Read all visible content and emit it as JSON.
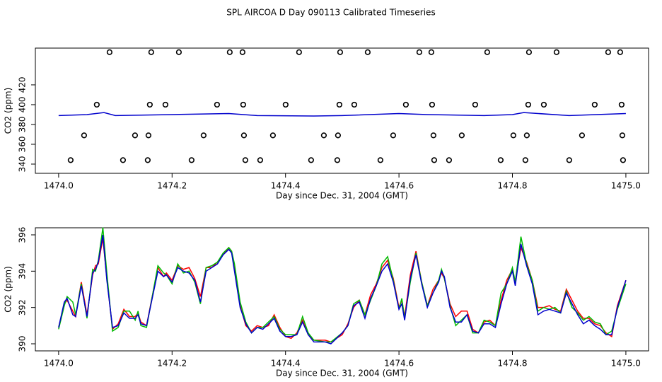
{
  "chart_data": [
    {
      "type": "scatter",
      "title": "SPL AIRCOA D  Day 090113  Calibrated Timeseries",
      "x_label": "Day since Dec. 31, 2004 (GMT)",
      "y_label": "CO2 (ppm)",
      "xlim": [
        1473.959,
        1475.04
      ],
      "ylim": [
        330.7,
        457.1
      ],
      "xticks": [
        {
          "value": 1474,
          "label": "1474.0"
        },
        1474.2,
        1474.4,
        1474.6,
        1474.8,
        {
          "value": 1475,
          "label": "1475.0"
        }
      ],
      "yticks": [
        340,
        360,
        380,
        400,
        420
      ],
      "series": [
        {
          "type": "scatter",
          "color": "#000000",
          "x": [
            1474.0898,
            1474.1633,
            1474.212,
            1474.3017,
            1474.3242,
            1474.4239,
            1474.4963,
            1474.5449,
            1474.6359,
            1474.6571,
            1474.7556,
            1474.8292,
            1474.8778,
            1474.9688,
            1474.99
          ],
          "values": [
            453,
            453,
            453,
            453,
            453,
            453,
            453,
            453,
            453,
            453,
            453,
            453,
            453,
            453,
            453
          ]
        },
        {
          "type": "scatter",
          "color": "#000000",
          "x": [
            1474.0673,
            1474.1608,
            1474.1883,
            1474.2793,
            1474.3254,
            1474.4002,
            1474.495,
            1474.5212,
            1474.6122,
            1474.6584,
            1474.7344,
            1474.8279,
            1474.8554,
            1474.9451,
            1474.9925
          ],
          "values": [
            400,
            400,
            400,
            400,
            400,
            400,
            400,
            400,
            400,
            400,
            400,
            400,
            400,
            400,
            400
          ]
        },
        {
          "type": "scatter",
          "color": "#000000",
          "x": [
            1474.0449,
            1474.1347,
            1474.1584,
            1474.2556,
            1474.3267,
            1474.3778,
            1474.4676,
            1474.4925,
            1474.5898,
            1474.6608,
            1474.7107,
            1474.8017,
            1474.8254,
            1474.9227,
            1474.9938
          ],
          "values": [
            369,
            369,
            369,
            369,
            369,
            369,
            369,
            369,
            369,
            369,
            369,
            369,
            369,
            369,
            369
          ]
        },
        {
          "type": "scatter",
          "color": "#000000",
          "x": [
            1474.0212,
            1474.1135,
            1474.1571,
            1474.2344,
            1474.3292,
            1474.3554,
            1474.4451,
            1474.4913,
            1474.5673,
            1474.6621,
            1474.6883,
            1474.7793,
            1474.8229,
            1474.9002,
            1474.995
          ],
          "values": [
            344,
            344,
            344,
            344,
            344,
            344,
            344,
            344,
            344,
            344,
            344,
            344,
            344,
            344,
            344
          ]
        },
        {
          "type": "line",
          "color": "#0000cc",
          "x": [
            1474.0,
            1474.05,
            1474.08,
            1474.1,
            1474.2,
            1474.3,
            1474.35,
            1474.45,
            1474.5,
            1474.6,
            1474.65,
            1474.75,
            1474.8,
            1474.82,
            1474.9,
            1475.0
          ],
          "values": [
            389,
            390,
            392,
            389,
            390,
            391,
            389,
            388.5,
            389,
            391,
            390,
            389,
            390,
            392,
            389,
            391
          ]
        }
      ]
    },
    {
      "type": "line",
      "x_label": "Day since Dec. 31, 2004 (GMT)",
      "y_label": "CO2 (ppm)",
      "xlim": [
        1473.959,
        1475.04
      ],
      "ylim": [
        389.61,
        396.39
      ],
      "xticks": [
        {
          "value": 1474,
          "label": "1474.0"
        },
        1474.2,
        1474.4,
        1474.6,
        1474.8,
        {
          "value": 1475,
          "label": "1475.0"
        }
      ],
      "yticks": [
        390,
        392,
        394,
        396
      ],
      "x": [
        1474.0,
        1474.01,
        1474.015,
        1474.025,
        1474.03,
        1474.04,
        1474.05,
        1474.06,
        1474.065,
        1474.07,
        1474.078,
        1474.085,
        1474.095,
        1474.105,
        1474.115,
        1474.125,
        1474.135,
        1474.14,
        1474.145,
        1474.155,
        1474.175,
        1474.185,
        1474.19,
        1474.2,
        1474.21,
        1474.22,
        1474.23,
        1474.24,
        1474.25,
        1474.26,
        1474.27,
        1474.28,
        1474.29,
        1474.3,
        1474.305,
        1474.31,
        1474.32,
        1474.33,
        1474.34,
        1474.35,
        1474.36,
        1474.37,
        1474.38,
        1474.39,
        1474.4,
        1474.41,
        1474.42,
        1474.43,
        1474.44,
        1474.45,
        1474.47,
        1474.48,
        1474.5,
        1474.51,
        1474.52,
        1474.53,
        1474.54,
        1474.55,
        1474.56,
        1474.57,
        1474.58,
        1474.59,
        1474.6,
        1474.605,
        1474.61,
        1474.62,
        1474.63,
        1474.64,
        1474.65,
        1474.66,
        1474.67,
        1474.675,
        1474.68,
        1474.69,
        1474.7,
        1474.71,
        1474.72,
        1474.73,
        1474.74,
        1474.75,
        1474.76,
        1474.77,
        1474.78,
        1474.79,
        1474.8,
        1474.805,
        1474.815,
        1474.825,
        1474.835,
        1474.845,
        1474.855,
        1474.865,
        1474.875,
        1474.885,
        1474.895,
        1474.905,
        1474.915,
        1474.925,
        1474.935,
        1474.945,
        1474.955,
        1474.965,
        1474.975,
        1474.985,
        1475.0
      ],
      "series": [
        {
          "type": "line",
          "color": "#ff0000",
          "values": [
            390.9,
            392.2,
            392.4,
            391.8,
            391.5,
            393.4,
            391.6,
            393.8,
            394.3,
            394.4,
            395.8,
            393.6,
            390.8,
            391.1,
            391.9,
            391.5,
            391.5,
            391.7,
            391.2,
            391.0,
            394.2,
            393.7,
            393.9,
            393.5,
            394.3,
            394.1,
            394.2,
            393.6,
            392.6,
            394.2,
            394.2,
            394.5,
            394.9,
            395.3,
            395.1,
            394.2,
            392.1,
            391.0,
            390.7,
            391.0,
            390.9,
            391.0,
            391.6,
            390.9,
            390.4,
            390.3,
            390.6,
            391.3,
            390.5,
            390.2,
            390.2,
            390.1,
            390.5,
            391.1,
            392.0,
            392.4,
            391.6,
            392.7,
            393.3,
            394.2,
            394.6,
            393.6,
            392.0,
            392.4,
            391.5,
            393.8,
            395.1,
            393.4,
            392.1,
            393.0,
            393.5,
            393.9,
            393.6,
            392.2,
            391.5,
            391.8,
            391.8,
            390.8,
            390.6,
            391.2,
            391.3,
            391.0,
            392.4,
            393.5,
            394.1,
            393.4,
            395.3,
            394.5,
            393.5,
            392.0,
            392.0,
            392.1,
            391.9,
            391.8,
            393.0,
            392.4,
            391.8,
            391.4,
            391.4,
            391.1,
            391.0,
            390.6,
            390.4,
            392.1,
            393.5
          ]
        },
        {
          "type": "line",
          "color": "#00bb00",
          "values": [
            390.8,
            392.1,
            392.6,
            392.3,
            391.6,
            393.3,
            391.4,
            394.1,
            394.0,
            394.6,
            396.4,
            393.9,
            390.7,
            390.9,
            391.8,
            391.8,
            391.3,
            391.8,
            391.0,
            390.9,
            394.3,
            393.9,
            393.8,
            393.3,
            394.4,
            393.9,
            394.0,
            393.4,
            392.2,
            394.2,
            394.3,
            394.5,
            395.0,
            395.3,
            395.1,
            394.4,
            392.3,
            391.2,
            390.6,
            390.9,
            390.9,
            391.2,
            391.5,
            390.8,
            390.5,
            390.5,
            390.5,
            391.5,
            390.6,
            390.2,
            390.1,
            390.1,
            390.6,
            391.0,
            392.2,
            392.4,
            391.6,
            392.4,
            393.2,
            394.4,
            394.8,
            393.5,
            391.9,
            392.5,
            391.4,
            393.4,
            395.0,
            393.4,
            392.1,
            392.8,
            393.5,
            394.1,
            393.6,
            392.1,
            391.0,
            391.3,
            391.6,
            390.6,
            390.6,
            391.3,
            391.2,
            391.0,
            392.8,
            393.3,
            394.2,
            393.4,
            395.9,
            394.4,
            393.5,
            391.8,
            392.0,
            391.9,
            392.0,
            391.7,
            392.9,
            392.0,
            391.7,
            391.3,
            391.5,
            391.2,
            391.1,
            390.5,
            390.7,
            391.9,
            393.3
          ]
        },
        {
          "type": "line",
          "color": "#0000cc",
          "values": [
            390.9,
            392.3,
            392.5,
            391.6,
            391.5,
            393.2,
            391.5,
            393.9,
            394.1,
            394.5,
            396.0,
            393.5,
            390.9,
            391.0,
            391.7,
            391.4,
            391.4,
            391.6,
            391.1,
            391.0,
            394.0,
            393.7,
            393.8,
            393.4,
            394.2,
            394.0,
            393.9,
            393.5,
            392.3,
            394.0,
            394.2,
            394.4,
            394.9,
            395.2,
            395.0,
            394.0,
            392.0,
            391.1,
            390.6,
            390.9,
            390.8,
            391.1,
            391.4,
            390.7,
            390.4,
            390.4,
            390.5,
            391.2,
            390.5,
            390.1,
            390.1,
            390.0,
            390.6,
            391.0,
            392.1,
            392.3,
            391.4,
            392.5,
            393.2,
            394.0,
            394.4,
            393.4,
            391.9,
            392.2,
            391.3,
            393.6,
            394.9,
            393.3,
            392.0,
            392.8,
            393.4,
            394.0,
            393.7,
            392.0,
            391.2,
            391.2,
            391.6,
            390.7,
            390.6,
            391.1,
            391.1,
            390.9,
            392.2,
            393.3,
            394.0,
            393.2,
            395.5,
            394.3,
            393.3,
            391.6,
            391.8,
            391.9,
            391.8,
            391.7,
            392.8,
            392.2,
            391.6,
            391.1,
            391.3,
            391.0,
            390.8,
            390.5,
            390.5,
            392.0,
            393.5
          ]
        }
      ]
    }
  ]
}
